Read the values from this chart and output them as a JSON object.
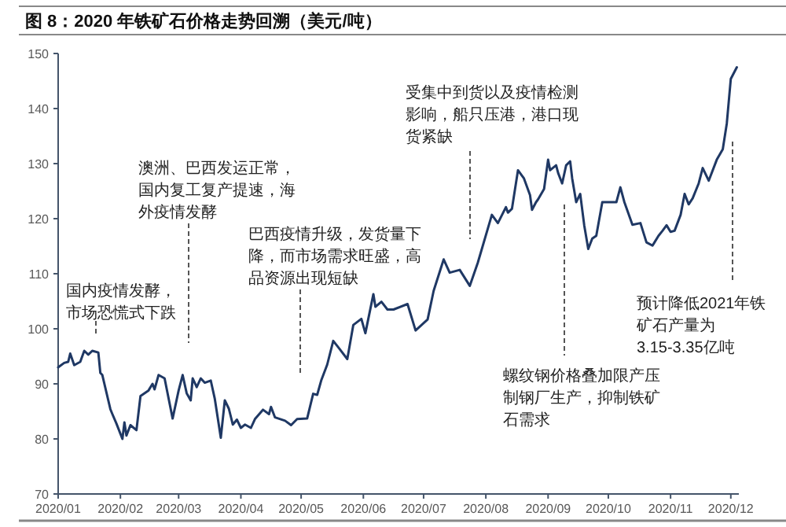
{
  "chart_data": {
    "type": "line",
    "title": "图 8：2020 年铁矿石价格走势回溯（美元/吨）",
    "x": [
      "2020-01-01",
      "2020-01-04",
      "2020-01-06",
      "2020-01-07",
      "2020-01-09",
      "2020-01-12",
      "2020-01-14",
      "2020-01-16",
      "2020-01-18",
      "2020-01-21",
      "2020-01-22",
      "2020-01-23",
      "2020-01-27",
      "2020-01-28",
      "2020-01-30",
      "2020-02-02",
      "2020-02-03",
      "2020-02-04",
      "2020-02-06",
      "2020-02-09",
      "2020-02-11",
      "2020-02-15",
      "2020-02-17",
      "2020-02-18",
      "2020-02-20",
      "2020-02-23",
      "2020-02-27",
      "2020-03-01",
      "2020-03-03",
      "2020-03-05",
      "2020-03-07",
      "2020-03-08",
      "2020-03-10",
      "2020-03-12",
      "2020-03-14",
      "2020-03-17",
      "2020-03-19",
      "2020-03-22",
      "2020-03-24",
      "2020-03-26",
      "2020-03-28",
      "2020-03-30",
      "2020-04-01",
      "2020-04-03",
      "2020-04-06",
      "2020-04-08",
      "2020-04-12",
      "2020-04-15",
      "2020-04-16",
      "2020-04-18",
      "2020-04-23",
      "2020-04-26",
      "2020-04-29",
      "2020-05-04",
      "2020-05-07",
      "2020-05-09",
      "2020-05-11",
      "2020-05-14",
      "2020-05-17",
      "2020-05-20",
      "2020-05-24",
      "2020-05-27",
      "2020-05-31",
      "2020-06-02",
      "2020-06-06",
      "2020-06-07",
      "2020-06-10",
      "2020-06-13",
      "2020-06-16",
      "2020-06-23",
      "2020-06-27",
      "2020-06-30",
      "2020-07-03",
      "2020-07-06",
      "2020-07-11",
      "2020-07-14",
      "2020-07-19",
      "2020-07-24",
      "2020-07-28",
      "2020-08-04",
      "2020-08-07",
      "2020-08-11",
      "2020-08-12",
      "2020-08-14",
      "2020-08-17",
      "2020-08-20",
      "2020-08-23",
      "2020-08-24",
      "2020-08-26",
      "2020-08-27",
      "2020-08-30",
      "2020-09-01",
      "2020-09-02",
      "2020-09-05",
      "2020-09-06",
      "2020-09-08",
      "2020-09-10",
      "2020-09-12",
      "2020-09-13",
      "2020-09-15",
      "2020-09-17",
      "2020-09-19",
      "2020-09-21",
      "2020-09-23",
      "2020-09-25",
      "2020-09-28",
      "2020-10-05",
      "2020-10-07",
      "2020-10-09",
      "2020-10-13",
      "2020-10-17",
      "2020-10-20",
      "2020-10-23",
      "2020-10-24",
      "2020-10-26",
      "2020-10-28",
      "2020-10-30",
      "2020-11-01",
      "2020-11-03",
      "2020-11-06",
      "2020-11-08",
      "2020-11-10",
      "2020-11-12",
      "2020-11-15",
      "2020-11-17",
      "2020-11-20",
      "2020-11-24",
      "2020-11-27",
      "2020-11-29",
      "2020-12-01",
      "2020-12-04"
    ],
    "series": [
      {
        "color": "#1f3864",
        "values": [
          93.0,
          93.8,
          94,
          95.5,
          93.4,
          94,
          96,
          95.3,
          96,
          95.7,
          92,
          91.6,
          85.4,
          84.5,
          82.8,
          80,
          83,
          80.6,
          82.5,
          81.6,
          87.8,
          88.8,
          90,
          89,
          91.6,
          91,
          83.7,
          88.8,
          91.6,
          88.3,
          87,
          91,
          89.4,
          91,
          90.2,
          90.6,
          87.3,
          80.2,
          87,
          85.5,
          82.6,
          83.5,
          82,
          82.6,
          82,
          83.6,
          85.3,
          84.5,
          85.8,
          83.9,
          83.3,
          82.5,
          83.6,
          83.7,
          88.2,
          88,
          90.6,
          93.5,
          97.8,
          96.4,
          94.5,
          100.7,
          101.8,
          99.2,
          106.3,
          104,
          104.9,
          103.5,
          103.5,
          104.5,
          99.7,
          100.7,
          101.7,
          106.9,
          112.6,
          110.2,
          110.7,
          107.8,
          112,
          120.7,
          119.2,
          122.1,
          121.1,
          121.8,
          128.8,
          127.3,
          124.3,
          121.6,
          123,
          123.5,
          125.4,
          130.7,
          128.8,
          129.7,
          128.3,
          126.4,
          129.7,
          130.4,
          127.3,
          123,
          124.5,
          118.8,
          114.5,
          116.4,
          116.9,
          123,
          123,
          125.7,
          123,
          118.9,
          119.2,
          115.7,
          115.1,
          115.7,
          116.9,
          117.8,
          118.8,
          117.6,
          117.8,
          120.7,
          124.5,
          122.6,
          123.7,
          126.4,
          129.2,
          126.9,
          130.7,
          132.6,
          137.3,
          145.4,
          147.5
        ]
      }
    ],
    "xlim": [
      "2020-01-01",
      "2020-12-05"
    ],
    "xticks": [
      {
        "value": "2020-01-01",
        "label": "2020/01"
      },
      {
        "value": "2020-02-01",
        "label": "2020/02"
      },
      {
        "value": "2020-03-01",
        "label": "2020/03"
      },
      {
        "value": "2020-04-01",
        "label": "2020/04"
      },
      {
        "value": "2020-05-01",
        "label": "2020/05"
      },
      {
        "value": "2020-06-01",
        "label": "2020/06"
      },
      {
        "value": "2020-07-01",
        "label": "2020/07"
      },
      {
        "value": "2020-08-01",
        "label": "2020/08"
      },
      {
        "value": "2020-09-01",
        "label": "2020/09"
      },
      {
        "value": "2020-10-01",
        "label": "2020/10"
      },
      {
        "value": "2020-11-01",
        "label": "2020/11"
      },
      {
        "value": "2020-12-01",
        "label": "2020/12"
      }
    ],
    "ylim": [
      70,
      150
    ],
    "yticks": [
      70,
      80,
      90,
      100,
      110,
      120,
      130,
      140,
      150
    ],
    "grid": false,
    "marker": "none",
    "annotations": [
      "国内疫情发酵，市场恐慌式下跌",
      "澳洲、巴西发运正常，国内复工复产提速，海外疫情发酵",
      "巴西疫情升级，发货量下降，而市场需求旺盛，高品资源出现短缺",
      "受集中到货以及疫情检测影响，船只压港，港口现货紧缺",
      "螺纹钢价格叠加限产压制钢厂生产，抑制铁矿石需求",
      "预计降低2021年铁矿石产量为3.15-3.35亿吨"
    ]
  }
}
